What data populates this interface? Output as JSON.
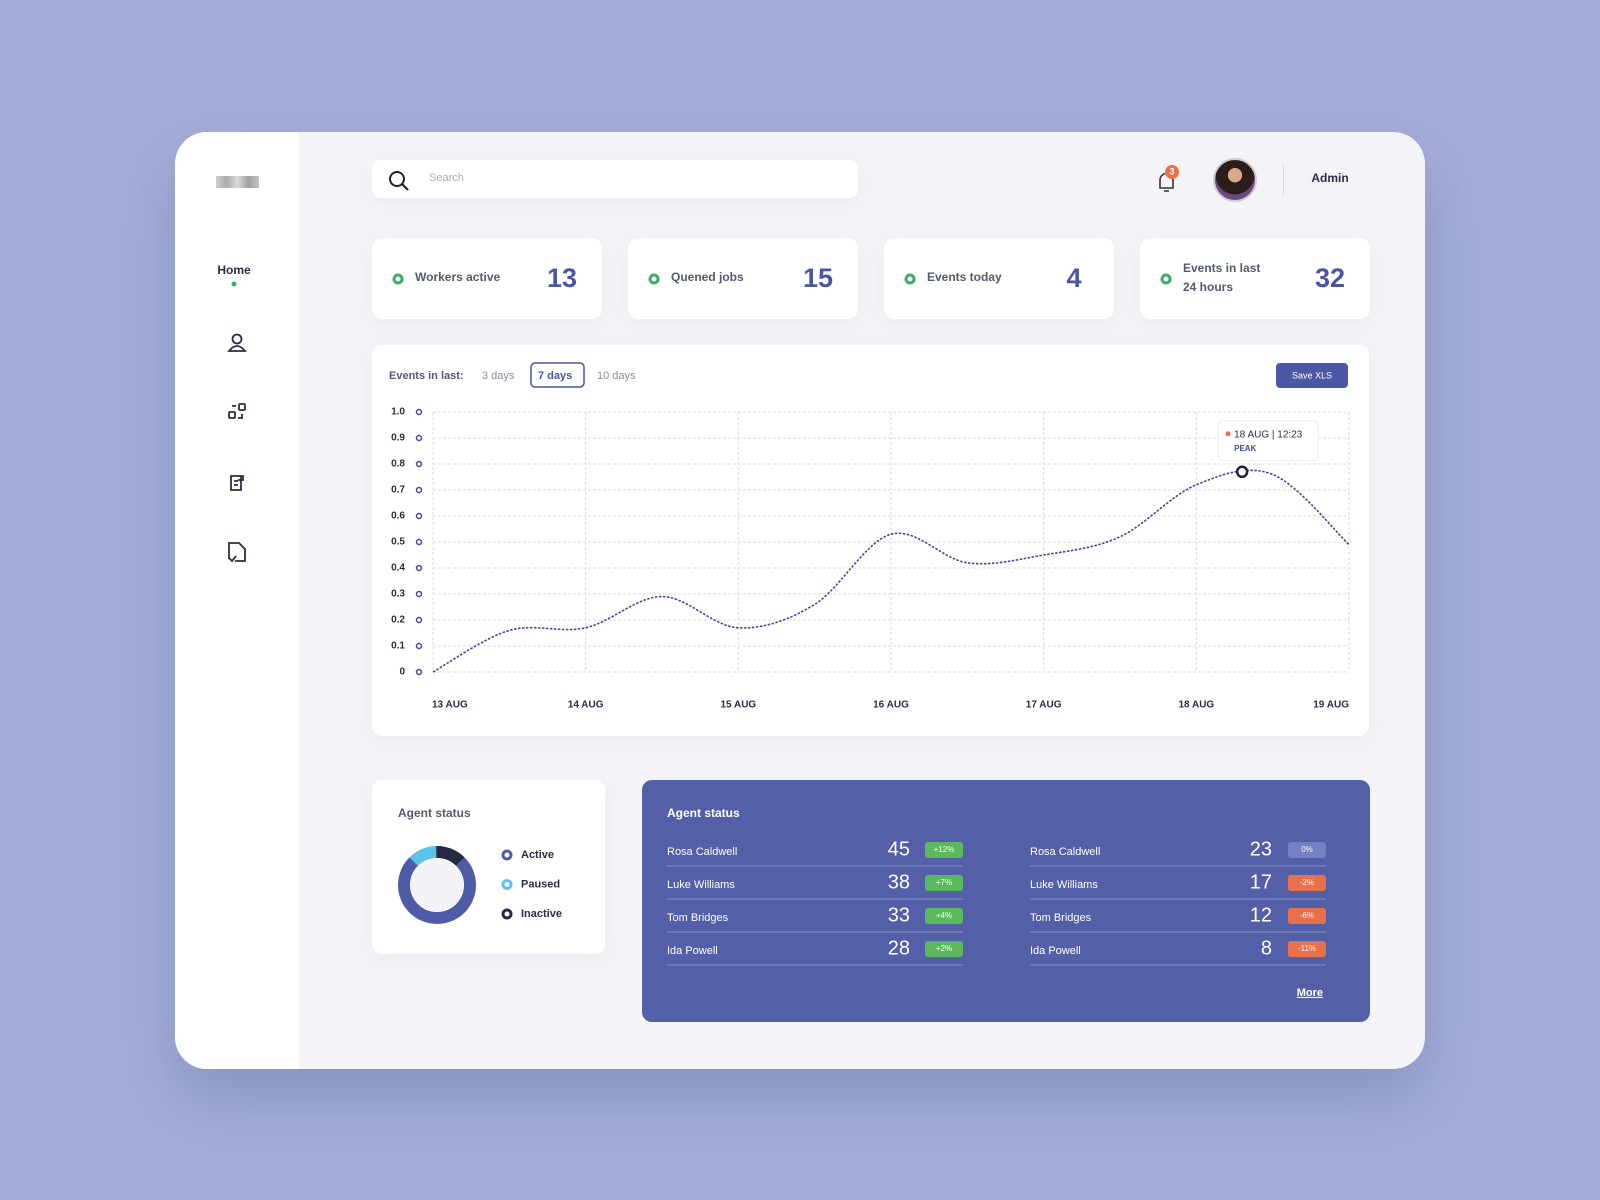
{
  "sidebar": {
    "nav": [
      "Home"
    ]
  },
  "header": {
    "search_placeholder": "Search",
    "notifications": "3",
    "user": "Admin"
  },
  "stats": [
    {
      "label": "Workers active",
      "value": 13
    },
    {
      "label": "Quened jobs",
      "value": 15
    },
    {
      "label": "Events today",
      "value": 4
    },
    {
      "label": "Events in last 24 hours",
      "value": 32
    }
  ],
  "events_chart": {
    "type": "line",
    "filter_label": "Events in last:",
    "ranges": [
      "3 days",
      "7 days",
      "10 days"
    ],
    "selected_range": "7 days",
    "button": "Save XLS",
    "x": [
      0,
      0.5,
      1,
      1.5,
      2,
      2.5,
      3,
      3.5,
      4,
      4.5,
      5,
      5.5,
      6
    ],
    "values": [
      0,
      0.16,
      0.17,
      0.29,
      0.17,
      0.26,
      0.53,
      0.42,
      0.45,
      0.52,
      0.72,
      0.76,
      0.49
    ],
    "color": "#3f4a9e",
    "xlim": [
      0,
      6
    ],
    "xticks": [
      {
        "value": 0,
        "label": "13 AUG"
      },
      {
        "value": 1,
        "label": "14 AUG"
      },
      {
        "value": 2,
        "label": "15 AUG"
      },
      {
        "value": 3,
        "label": "16 AUG"
      },
      {
        "value": 4,
        "label": "17 AUG"
      },
      {
        "value": 5,
        "label": "18 AUG"
      },
      {
        "value": 6,
        "label": "19 AUG"
      }
    ],
    "ylim": [
      0,
      1
    ],
    "yticks": [
      0,
      0.1,
      0.2,
      0.3,
      0.4,
      0.5,
      0.6,
      0.7,
      0.8,
      0.9,
      {
        "value": 1,
        "label": "1.0"
      }
    ],
    "grid": true,
    "peak": {
      "x": 5.3,
      "y": 0.77,
      "label": "18 AUG | 12:23",
      "note": "PEAK"
    }
  },
  "agent_status_chart": {
    "type": "donut",
    "title": "Agent status",
    "categories": [
      "Active",
      "Paused",
      "Inactive"
    ],
    "values": [
      75,
      12,
      13
    ],
    "colors": [
      "#4f5ba6",
      "#5cc3ea",
      "#262a40"
    ]
  },
  "agent_table": {
    "title": "Agent status",
    "columns": [
      [
        {
          "name": "Rosa Caldwell",
          "value": 45,
          "change": "+12%"
        },
        {
          "name": "Luke Williams",
          "value": 38,
          "change": "+7%"
        },
        {
          "name": "Tom Bridges",
          "value": 33,
          "change": "+4%"
        },
        {
          "name": "Ida Powell",
          "value": 28,
          "change": "+2%"
        }
      ],
      [
        {
          "name": "Rosa Caldwell",
          "value": 23,
          "change": "0%"
        },
        {
          "name": "Luke Williams",
          "value": 17,
          "change": "-2%"
        },
        {
          "name": "Tom Bridges",
          "value": 12,
          "change": "-6%"
        },
        {
          "name": "Ida Powell",
          "value": 8,
          "change": "-11%"
        }
      ]
    ],
    "more": "More"
  }
}
